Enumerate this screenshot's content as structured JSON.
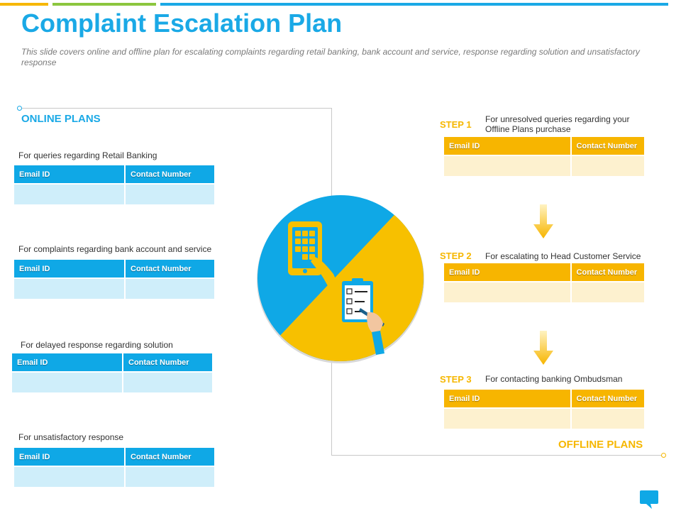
{
  "header": {
    "title": "Complaint Escalation Plan",
    "subtitle": "This slide covers online and offline plan for escalating complaints regarding retail banking, bank account and service, response regarding solution and unsatisfactory response"
  },
  "colors": {
    "blue": "#0fa8e6",
    "yellow": "#f7b500",
    "green": "#8cc63f",
    "orange": "#f6b700"
  },
  "online_plans": {
    "title": "ONLINE PLANS",
    "column_email": "Email ID",
    "column_contact": "Contact Number",
    "items": [
      {
        "label": "For queries regarding Retail Banking"
      },
      {
        "label": "For complaints regarding bank account and service"
      },
      {
        "label": "For delayed response regarding solution"
      },
      {
        "label": "For unsatisfactory response"
      }
    ]
  },
  "offline_plans": {
    "title": "OFFLINE PLANS",
    "column_email": "Email ID",
    "column_contact": "Contact Number",
    "steps": [
      {
        "step": "STEP 1",
        "label": "For unresolved queries regarding your Offline Plans purchase"
      },
      {
        "step": "STEP 2",
        "label": "For escalating to Head Customer Service"
      },
      {
        "step": "STEP 3",
        "label": "For contacting banking Ombudsman"
      }
    ]
  },
  "icons": {
    "center_left": "tablet-touch-icon",
    "center_right": "checklist-clipboard-icon",
    "corner": "chat-bubble-icon"
  }
}
